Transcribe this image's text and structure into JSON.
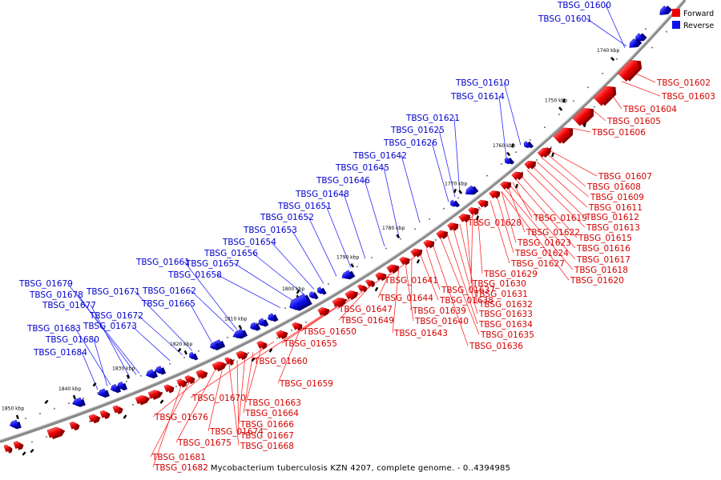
{
  "caption": "Mycobacterium tuberculosis KZN 4207, complete genome. - 0..4394985",
  "legend": {
    "forward": "Forward",
    "reverse": "Reverse",
    "forward_color": "#ee0000",
    "reverse_color": "#1010ee"
  },
  "ticks": [
    "1740 kbp",
    "1750 kbp",
    "1760 kbp",
    "1770 kbp",
    "1780 kbp",
    "1790 kbp",
    "1800 kbp",
    "1810 kbp",
    "1820 kbp",
    "1830 kbp",
    "1840 kbp",
    "1850 kbp"
  ],
  "forward_labels": [
    "TBSG_01602",
    "TBSG_01603",
    "TBSG_01604",
    "TBSG_01605",
    "TBSG_01606",
    "TBSG_01607",
    "TBSG_01608",
    "TBSG_01609",
    "TBSG_01611",
    "TBSG_01612",
    "TBSG_01613",
    "TBSG_01615",
    "TBSG_01616",
    "TBSG_01617",
    "TBSG_01618",
    "TBSG_01620",
    "TBSG_01619",
    "TBSG_01622",
    "TBSG_01623",
    "TBSG_01624",
    "TBSG_01627",
    "TBSG_01628",
    "TBSG_01629",
    "TBSG_01630",
    "TBSG_01631",
    "TBSG_01632",
    "TBSG_01633",
    "TBSG_01634",
    "TBSG_01635",
    "TBSG_01636",
    "TBSG_01641",
    "TBSG_01637",
    "TBSG_01638",
    "TBSG_01639",
    "TBSG_01640",
    "TBSG_01643",
    "TBSG_01644",
    "TBSG_01647",
    "TBSG_01649",
    "TBSG_01650",
    "TBSG_01655",
    "TBSG_01660",
    "TBSG_01659",
    "TBSG_01670",
    "TBSG_01663",
    "TBSG_01664",
    "TBSG_01666",
    "TBSG_01667",
    "TBSG_01668",
    "TBSG_01674",
    "TBSG_01675",
    "TBSG_01676",
    "TBSG_01681",
    "TBSG_01682"
  ],
  "reverse_labels": [
    "TBSG_01600",
    "TBSG_01601",
    "TBSG_01610",
    "TBSG_01614",
    "TBSG_01621",
    "TBSG_01625",
    "TBSG_01626",
    "TBSG_01642",
    "TBSG_01645",
    "TBSG_01646",
    "TBSG_01648",
    "TBSG_01651",
    "TBSG_01652",
    "TBSG_01653",
    "TBSG_01654",
    "TBSG_01656",
    "TBSG_01657",
    "TBSG_01658",
    "TBSG_01661",
    "TBSG_01662",
    "TBSG_01665",
    "TBSG_01671",
    "TBSG_01672",
    "TBSG_01673",
    "TBSG_01679",
    "TBSG_01678",
    "TBSG_01677",
    "TBSG_01683",
    "TBSG_01680",
    "TBSG_01684"
  ]
}
